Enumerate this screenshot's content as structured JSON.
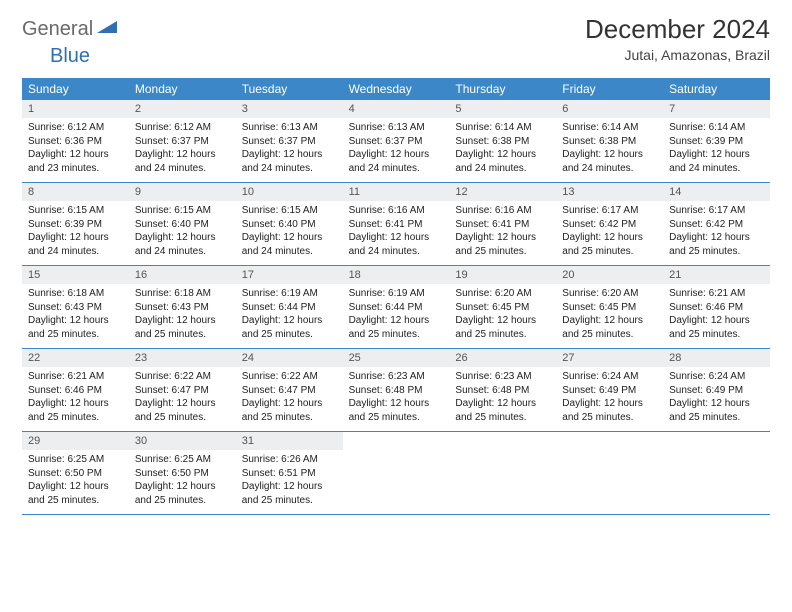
{
  "logo": {
    "general": "General",
    "blue": "Blue"
  },
  "title": "December 2024",
  "location": "Jutai, Amazonas, Brazil",
  "colors": {
    "header_bg": "#3b87c8",
    "header_text": "#ffffff",
    "daynum_bg": "#eceeef",
    "border": "#3b87c8",
    "title_color": "#333333",
    "logo_gray": "#6a6a6a",
    "logo_blue": "#2f6fb3"
  },
  "weekdays": [
    "Sunday",
    "Monday",
    "Tuesday",
    "Wednesday",
    "Thursday",
    "Friday",
    "Saturday"
  ],
  "first_weekday_index": 0,
  "days": [
    {
      "n": 1,
      "sunrise": "6:12 AM",
      "sunset": "6:36 PM",
      "daylight": "12 hours and 23 minutes."
    },
    {
      "n": 2,
      "sunrise": "6:12 AM",
      "sunset": "6:37 PM",
      "daylight": "12 hours and 24 minutes."
    },
    {
      "n": 3,
      "sunrise": "6:13 AM",
      "sunset": "6:37 PM",
      "daylight": "12 hours and 24 minutes."
    },
    {
      "n": 4,
      "sunrise": "6:13 AM",
      "sunset": "6:37 PM",
      "daylight": "12 hours and 24 minutes."
    },
    {
      "n": 5,
      "sunrise": "6:14 AM",
      "sunset": "6:38 PM",
      "daylight": "12 hours and 24 minutes."
    },
    {
      "n": 6,
      "sunrise": "6:14 AM",
      "sunset": "6:38 PM",
      "daylight": "12 hours and 24 minutes."
    },
    {
      "n": 7,
      "sunrise": "6:14 AM",
      "sunset": "6:39 PM",
      "daylight": "12 hours and 24 minutes."
    },
    {
      "n": 8,
      "sunrise": "6:15 AM",
      "sunset": "6:39 PM",
      "daylight": "12 hours and 24 minutes."
    },
    {
      "n": 9,
      "sunrise": "6:15 AM",
      "sunset": "6:40 PM",
      "daylight": "12 hours and 24 minutes."
    },
    {
      "n": 10,
      "sunrise": "6:15 AM",
      "sunset": "6:40 PM",
      "daylight": "12 hours and 24 minutes."
    },
    {
      "n": 11,
      "sunrise": "6:16 AM",
      "sunset": "6:41 PM",
      "daylight": "12 hours and 24 minutes."
    },
    {
      "n": 12,
      "sunrise": "6:16 AM",
      "sunset": "6:41 PM",
      "daylight": "12 hours and 25 minutes."
    },
    {
      "n": 13,
      "sunrise": "6:17 AM",
      "sunset": "6:42 PM",
      "daylight": "12 hours and 25 minutes."
    },
    {
      "n": 14,
      "sunrise": "6:17 AM",
      "sunset": "6:42 PM",
      "daylight": "12 hours and 25 minutes."
    },
    {
      "n": 15,
      "sunrise": "6:18 AM",
      "sunset": "6:43 PM",
      "daylight": "12 hours and 25 minutes."
    },
    {
      "n": 16,
      "sunrise": "6:18 AM",
      "sunset": "6:43 PM",
      "daylight": "12 hours and 25 minutes."
    },
    {
      "n": 17,
      "sunrise": "6:19 AM",
      "sunset": "6:44 PM",
      "daylight": "12 hours and 25 minutes."
    },
    {
      "n": 18,
      "sunrise": "6:19 AM",
      "sunset": "6:44 PM",
      "daylight": "12 hours and 25 minutes."
    },
    {
      "n": 19,
      "sunrise": "6:20 AM",
      "sunset": "6:45 PM",
      "daylight": "12 hours and 25 minutes."
    },
    {
      "n": 20,
      "sunrise": "6:20 AM",
      "sunset": "6:45 PM",
      "daylight": "12 hours and 25 minutes."
    },
    {
      "n": 21,
      "sunrise": "6:21 AM",
      "sunset": "6:46 PM",
      "daylight": "12 hours and 25 minutes."
    },
    {
      "n": 22,
      "sunrise": "6:21 AM",
      "sunset": "6:46 PM",
      "daylight": "12 hours and 25 minutes."
    },
    {
      "n": 23,
      "sunrise": "6:22 AM",
      "sunset": "6:47 PM",
      "daylight": "12 hours and 25 minutes."
    },
    {
      "n": 24,
      "sunrise": "6:22 AM",
      "sunset": "6:47 PM",
      "daylight": "12 hours and 25 minutes."
    },
    {
      "n": 25,
      "sunrise": "6:23 AM",
      "sunset": "6:48 PM",
      "daylight": "12 hours and 25 minutes."
    },
    {
      "n": 26,
      "sunrise": "6:23 AM",
      "sunset": "6:48 PM",
      "daylight": "12 hours and 25 minutes."
    },
    {
      "n": 27,
      "sunrise": "6:24 AM",
      "sunset": "6:49 PM",
      "daylight": "12 hours and 25 minutes."
    },
    {
      "n": 28,
      "sunrise": "6:24 AM",
      "sunset": "6:49 PM",
      "daylight": "12 hours and 25 minutes."
    },
    {
      "n": 29,
      "sunrise": "6:25 AM",
      "sunset": "6:50 PM",
      "daylight": "12 hours and 25 minutes."
    },
    {
      "n": 30,
      "sunrise": "6:25 AM",
      "sunset": "6:50 PM",
      "daylight": "12 hours and 25 minutes."
    },
    {
      "n": 31,
      "sunrise": "6:26 AM",
      "sunset": "6:51 PM",
      "daylight": "12 hours and 25 minutes."
    }
  ],
  "labels": {
    "sunrise_prefix": "Sunrise: ",
    "sunset_prefix": "Sunset: ",
    "daylight_prefix": "Daylight: "
  }
}
